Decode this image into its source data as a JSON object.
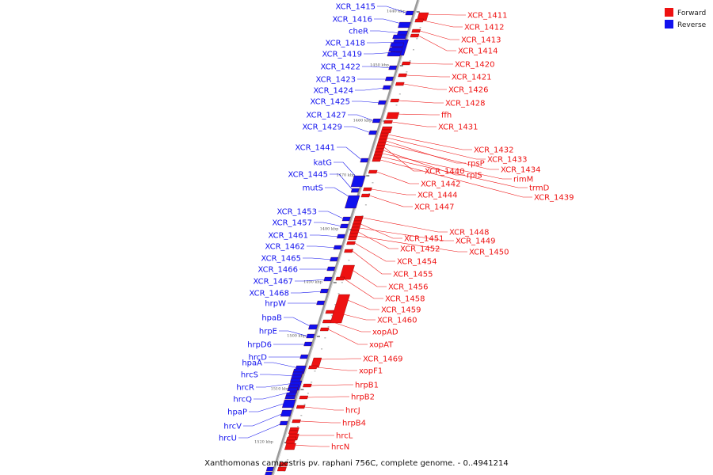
{
  "colors": {
    "forward": "#ee1111",
    "reverse": "#1111ee",
    "backbone": "#888888"
  },
  "legend": {
    "forward_label": "Forward",
    "reverse_label": "Reverse"
  },
  "caption": "Xanthomonas campestris pv. raphani 756C, complete genome. - 0..4941214",
  "ticks": [
    "1440 kbp",
    "1450 kbp",
    "1460 kbp",
    "1470 kbp",
    "1480 kbp",
    "1490 kbp",
    "1500 kbp",
    "1510 kbp",
    "1520 kbp"
  ],
  "reverse_genes": [
    "XCR_1415",
    "XCR_1416",
    "cheR",
    "XCR_1418",
    "XCR_1419",
    "XCR_1422",
    "XCR_1423",
    "XCR_1424",
    "XCR_1425",
    "XCR_1427",
    "XCR_1429",
    "XCR_1441",
    "katG",
    "XCR_1445",
    "mutS",
    "XCR_1453",
    "XCR_1457",
    "XCR_1461",
    "XCR_1462",
    "XCR_1465",
    "XCR_1466",
    "XCR_1467",
    "XCR_1468",
    "hrpW",
    "hpaB",
    "hrpE",
    "hrpD6",
    "hrcD",
    "hpaA",
    "hrcS",
    "hrcR",
    "hrcQ",
    "hpaP",
    "hrcV",
    "hrcU"
  ],
  "forward_genes": [
    "XCR_1411",
    "XCR_1412",
    "XCR_1413",
    "XCR_1414",
    "XCR_1420",
    "XCR_1421",
    "XCR_1426",
    "XCR_1428",
    "ffh",
    "XCR_1431",
    "XCR_1432",
    "XCR_1433",
    "rpsP",
    "XCR_1434",
    "XCR_1440",
    "rplS",
    "rimM",
    "trmD",
    "XCR_1439",
    "XCR_1442",
    "XCR_1444",
    "XCR_1447",
    "XCR_1448",
    "XCR_1451",
    "XCR_1449",
    "XCR_1452",
    "XCR_1450",
    "XCR_1454",
    "XCR_1455",
    "XCR_1456",
    "XCR_1458",
    "XCR_1459",
    "XCR_1460",
    "xopAD",
    "xopAT",
    "XCR_1469",
    "xopF1",
    "hrpB1",
    "hrpB2",
    "hrcJ",
    "hrpB4",
    "hrcL",
    "hrcN"
  ]
}
